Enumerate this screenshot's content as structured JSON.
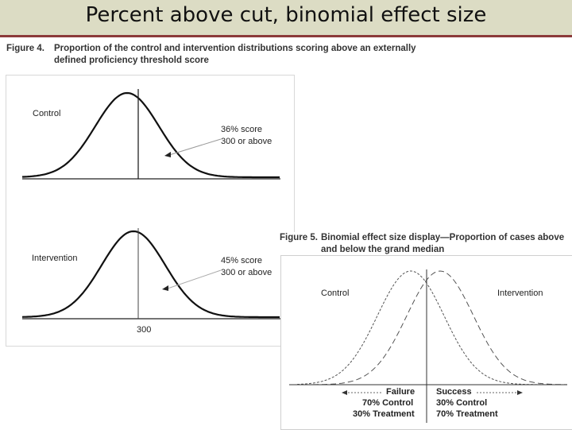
{
  "slide": {
    "title": "Percent above cut, binomial effect size"
  },
  "figure4": {
    "caption_number": "Figure 4.",
    "caption_line1": "Proportion of the control and intervention distributions scoring above an externally",
    "caption_line2": "defined proficiency threshold score",
    "control_label": "Control",
    "control_note_line1": "36% score",
    "control_note_line2": "300 or above",
    "intervention_label": "Intervention",
    "intervention_note_line1": "45% score",
    "intervention_note_line2": "300 or above",
    "threshold_label": "300"
  },
  "figure5": {
    "caption_number": "Figure 5.",
    "caption_line1": "Binomial effect size display—Proportion of cases above",
    "caption_line2": "and below the grand median",
    "control_label": "Control",
    "intervention_label": "Intervention",
    "failure_label": "Failure",
    "failure_control": "70% Control",
    "failure_treatment": "30% Treatment",
    "success_label": "Success",
    "success_control": "30% Control",
    "success_treatment": "70% Treatment"
  }
}
